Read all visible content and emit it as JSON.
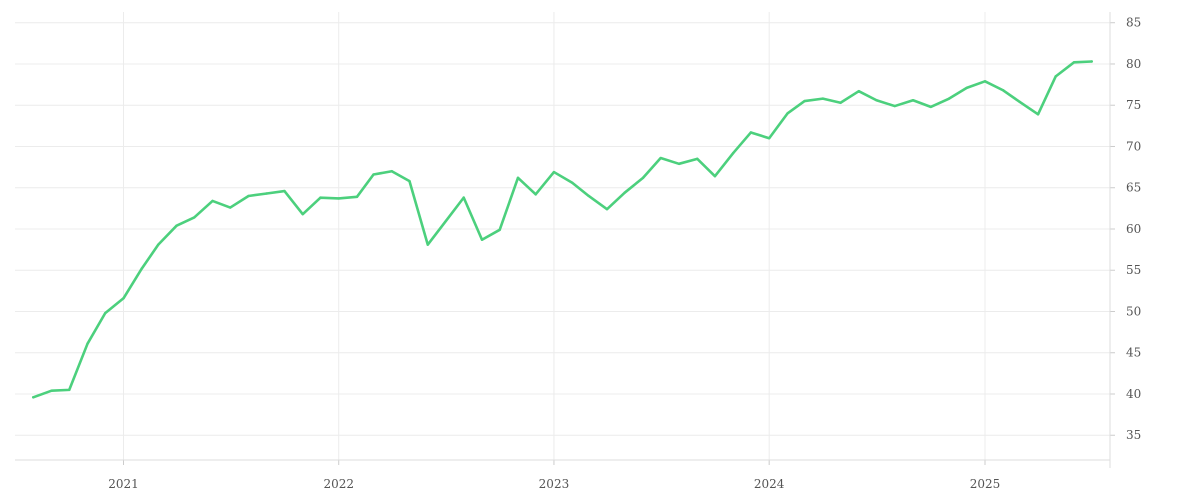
{
  "chart_data": {
    "type": "line",
    "title": "",
    "xlabel": "",
    "ylabel": "",
    "x_tick_labels": [
      "2021",
      "2022",
      "2023",
      "2024",
      "2025"
    ],
    "x_tick_values": [
      "2021-01-01",
      "2022-01-01",
      "2023-01-01",
      "2024-01-01",
      "2025-01-01"
    ],
    "y_tick_labels": [
      "35",
      "40",
      "45",
      "50",
      "55",
      "60",
      "65",
      "70",
      "75",
      "80",
      "85"
    ],
    "y_tick_values": [
      35,
      40,
      45,
      50,
      55,
      60,
      65,
      70,
      75,
      80,
      85
    ],
    "xlim": [
      "2020-07-01",
      "2025-08-01"
    ],
    "ylim": [
      32,
      86.3
    ],
    "y_axis_position": "right",
    "grid": true,
    "series_color": "#4cd07d",
    "series": [
      {
        "x": [
          "2020-08-01",
          "2020-09-01",
          "2020-10-01",
          "2020-11-01",
          "2020-12-01",
          "2021-01-01",
          "2021-02-01",
          "2021-03-01",
          "2021-04-01",
          "2021-05-01",
          "2021-06-01",
          "2021-07-01",
          "2021-08-01",
          "2021-09-01",
          "2021-10-01",
          "2021-11-01",
          "2021-12-01",
          "2022-01-01",
          "2022-02-01",
          "2022-03-01",
          "2022-04-01",
          "2022-05-01",
          "2022-06-01",
          "2022-07-01",
          "2022-08-01",
          "2022-09-01",
          "2022-10-01",
          "2022-11-01",
          "2022-12-01",
          "2023-01-01",
          "2023-02-01",
          "2023-03-01",
          "2023-04-01",
          "2023-05-01",
          "2023-06-01",
          "2023-07-01",
          "2023-08-01",
          "2023-09-01",
          "2023-10-01",
          "2023-11-01",
          "2023-12-01",
          "2024-01-01",
          "2024-02-01",
          "2024-03-01",
          "2024-04-01",
          "2024-05-01",
          "2024-06-01",
          "2024-07-01",
          "2024-08-01",
          "2024-09-01",
          "2024-10-01",
          "2024-11-01",
          "2024-12-01",
          "2025-01-01",
          "2025-02-01",
          "2025-03-01",
          "2025-04-01",
          "2025-05-01",
          "2025-06-01",
          "2025-07-01"
        ],
        "values": [
          39.6,
          40.4,
          40.5,
          46.1,
          49.8,
          51.6,
          55.2,
          58.1,
          60.4,
          61.4,
          63.4,
          62.6,
          64.0,
          64.3,
          64.6,
          61.8,
          63.8,
          63.7,
          63.9,
          66.6,
          67.0,
          65.8,
          58.1,
          60.9,
          63.8,
          58.7,
          59.9,
          66.2,
          64.2,
          66.9,
          65.6,
          64.0,
          62.4,
          64.4,
          66.2,
          68.6,
          67.9,
          68.5,
          66.4,
          69.2,
          71.7,
          71.0,
          74.0,
          75.5,
          75.8,
          75.3,
          76.7,
          75.6,
          74.9,
          75.6,
          74.8,
          75.8,
          77.1,
          77.9,
          76.8,
          75.4,
          73.9,
          78.5,
          80.2,
          80.3
        ]
      }
    ]
  }
}
